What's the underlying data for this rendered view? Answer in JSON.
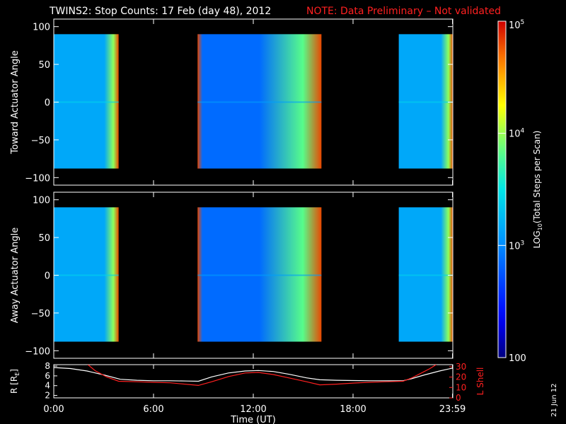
{
  "header": {
    "title": "TWINS2: Stop Counts: 17 Feb (day  48), 2012",
    "note": "NOTE: Data Preliminary – Not validated",
    "title_color": "#ffffff",
    "note_color": "#ff2020"
  },
  "side_date": "21 Jun 12",
  "chart_data": [
    {
      "type": "heatmap",
      "name": "toward",
      "ylabel": "Toward Actuator Angle",
      "ylim": [
        -110,
        110
      ],
      "yticks": [
        -100,
        -50,
        0,
        50,
        100
      ],
      "xlim_hours": [
        0,
        24
      ],
      "data_yrange": [
        -88,
        90
      ],
      "segments": [
        {
          "start_hours": 0.0,
          "end_hours": 3.9,
          "baseline_log10": 3.15,
          "edge_log10": 4.8
        },
        {
          "start_hours": 8.65,
          "end_hours": 16.1,
          "baseline_log10": 2.85,
          "edge_log10": 4.8
        },
        {
          "start_hours": 20.75,
          "end_hours": 24.0,
          "baseline_log10": 3.15,
          "edge_log10": 4.8
        }
      ]
    },
    {
      "type": "heatmap",
      "name": "away",
      "ylabel": "Away Actuator Angle",
      "ylim": [
        -110,
        110
      ],
      "yticks": [
        -100,
        -50,
        0,
        50,
        100
      ],
      "xlim_hours": [
        0,
        24
      ],
      "data_yrange": [
        -88,
        90
      ],
      "segments": [
        {
          "start_hours": 0.0,
          "end_hours": 3.9,
          "baseline_log10": 3.15,
          "edge_log10": 4.8
        },
        {
          "start_hours": 8.65,
          "end_hours": 16.1,
          "baseline_log10": 2.85,
          "edge_log10": 4.8
        },
        {
          "start_hours": 20.75,
          "end_hours": 24.0,
          "baseline_log10": 3.15,
          "edge_log10": 4.8
        }
      ]
    },
    {
      "type": "line",
      "name": "orbit",
      "xlabel": "Time (UT)",
      "x_tick_labels": [
        "0:00",
        "6:00",
        "12:00",
        "18:00",
        "23:59"
      ],
      "x_tick_hours": [
        0,
        6,
        12,
        18,
        23.98
      ],
      "left_axis": {
        "label": "R [R",
        "label_sub": "E",
        "label_end": "]",
        "ylim": [
          1.5,
          8.3
        ],
        "ticks": [
          2,
          4,
          6,
          8
        ]
      },
      "right_axis": {
        "label": "L Shell",
        "ylim": [
          0,
          32
        ],
        "ticks": [
          0,
          10,
          20,
          30
        ],
        "color": "#ff2020"
      },
      "series": [
        {
          "axis": "left",
          "color": "#ffffff",
          "x": [
            0,
            1,
            2,
            3,
            4,
            5,
            6,
            7,
            8,
            8.7,
            9.5,
            10.5,
            11.5,
            12.3,
            13.2,
            14.2,
            15.2,
            16.0,
            17,
            18,
            19,
            20,
            21,
            21.5,
            22.3,
            23.2,
            24
          ],
          "y": [
            7.7,
            7.5,
            7.0,
            6.2,
            5.3,
            5.1,
            5.0,
            5.0,
            4.95,
            4.9,
            5.8,
            6.6,
            7.0,
            7.1,
            6.9,
            6.3,
            5.6,
            5.2,
            5.1,
            5.05,
            5.0,
            5.0,
            5.0,
            5.4,
            6.2,
            7.0,
            7.6
          ]
        },
        {
          "axis": "right",
          "color": "#ff2020",
          "x": [
            2.05,
            2.5,
            3.2,
            3.9,
            5,
            6,
            7,
            8.7,
            9.5,
            10.5,
            11.5,
            12.3,
            13.2,
            14.2,
            15.2,
            16.0,
            17,
            18,
            19,
            20,
            21.0,
            21.5,
            22.0,
            22.6,
            23.0
          ],
          "y": [
            32,
            26,
            20,
            16,
            15.5,
            15,
            14.5,
            12,
            15.5,
            20.5,
            24,
            24.5,
            22.5,
            19,
            15.5,
            12.5,
            13.2,
            14.2,
            15,
            15.5,
            16,
            19,
            23,
            28,
            32
          ]
        }
      ]
    }
  ],
  "colorbar": {
    "label": "LOG",
    "label_sub": "10",
    "label_rest": "(Total Steps per Scan)",
    "ticks": [
      {
        "mantissa": "10",
        "exp": "5",
        "log10": 5
      },
      {
        "mantissa": "10",
        "exp": "4",
        "log10": 4
      },
      {
        "mantissa": "10",
        "exp": "3",
        "log10": 3
      },
      {
        "mantissa": "100",
        "exp": "",
        "log10": 2
      }
    ],
    "range_log10": [
      2,
      5
    ]
  }
}
